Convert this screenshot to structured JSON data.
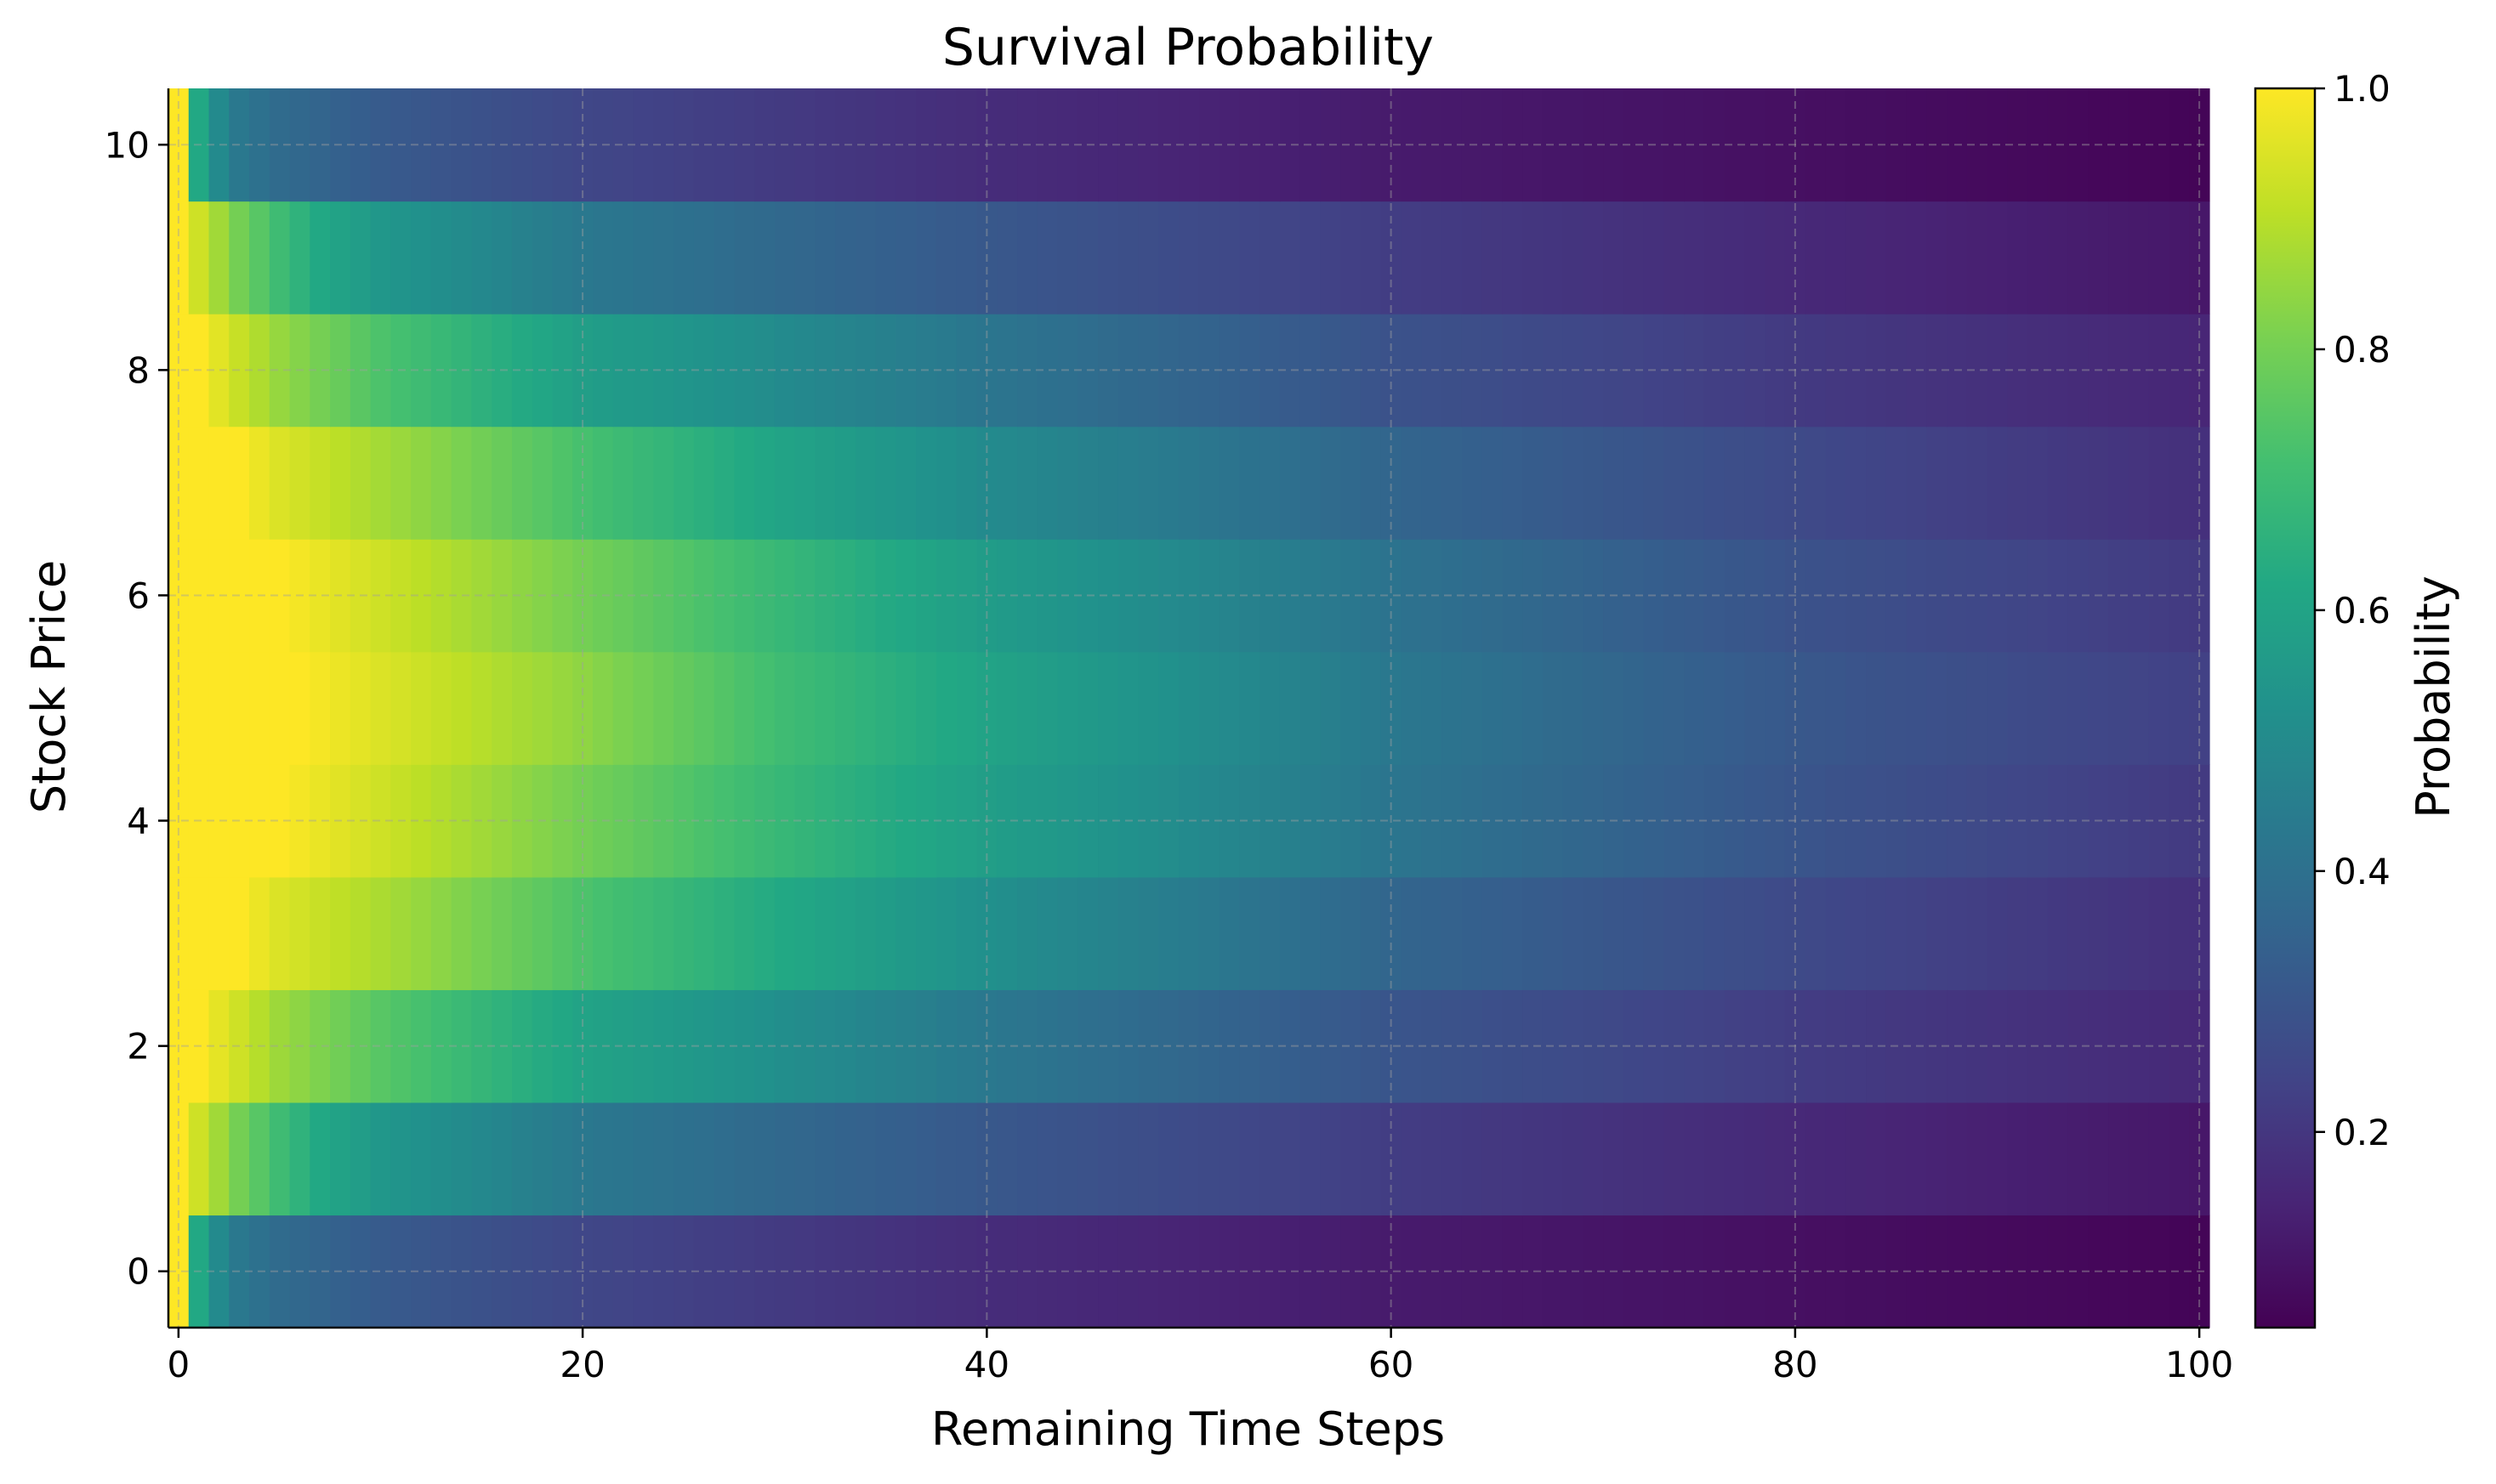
{
  "chart_data": {
    "type": "heatmap",
    "title": "Survival Probability",
    "xlabel": "Remaining Time Steps",
    "ylabel": "Stock Price",
    "colorbar_label": "Probability",
    "colormap": "viridis",
    "x_range": [
      0,
      100
    ],
    "xlim": [
      -0.5,
      100.5
    ],
    "y_range": [
      0,
      10
    ],
    "ylim": [
      -0.5,
      10.5
    ],
    "x_ticks": [
      0,
      20,
      40,
      60,
      80,
      100
    ],
    "x_tick_labels": [
      "0",
      "20",
      "40",
      "60",
      "80",
      "100"
    ],
    "y_ticks": [
      0,
      2,
      4,
      6,
      8,
      10
    ],
    "y_tick_labels": [
      "0",
      "2",
      "4",
      "6",
      "8",
      "10"
    ],
    "colorbar_range": [
      0.05,
      1.0
    ],
    "colorbar_ticks": [
      0.2,
      0.4,
      0.6,
      0.8,
      1.0
    ],
    "colorbar_tick_labels": [
      "0.2",
      "0.4",
      "0.6",
      "0.8",
      "1.0"
    ],
    "grid": true,
    "rows": [
      {
        "price": 0,
        "points": [
          [
            0,
            1.0
          ],
          [
            1,
            0.62
          ],
          [
            2,
            0.5
          ],
          [
            3,
            0.43
          ],
          [
            5,
            0.38
          ],
          [
            10,
            0.32
          ],
          [
            20,
            0.25
          ],
          [
            40,
            0.17
          ],
          [
            60,
            0.12
          ],
          [
            80,
            0.09
          ],
          [
            100,
            0.06
          ]
        ]
      },
      {
        "price": 1,
        "points": [
          [
            0,
            1.0
          ],
          [
            1,
            0.93
          ],
          [
            3,
            0.8
          ],
          [
            5,
            0.7
          ],
          [
            7,
            0.62
          ],
          [
            10,
            0.55
          ],
          [
            20,
            0.43
          ],
          [
            40,
            0.31
          ],
          [
            60,
            0.22
          ],
          [
            80,
            0.16
          ],
          [
            100,
            0.11
          ]
        ]
      },
      {
        "price": 2,
        "points": [
          [
            0,
            1.0
          ],
          [
            1,
            1.0
          ],
          [
            3,
            0.93
          ],
          [
            5,
            0.86
          ],
          [
            10,
            0.75
          ],
          [
            20,
            0.6
          ],
          [
            40,
            0.43
          ],
          [
            60,
            0.3
          ],
          [
            80,
            0.22
          ],
          [
            100,
            0.16
          ]
        ]
      },
      {
        "price": 3,
        "points": [
          [
            0,
            1.0
          ],
          [
            3,
            1.0
          ],
          [
            5,
            0.95
          ],
          [
            10,
            0.88
          ],
          [
            20,
            0.73
          ],
          [
            30,
            0.62
          ],
          [
            40,
            0.52
          ],
          [
            60,
            0.36
          ],
          [
            80,
            0.26
          ],
          [
            100,
            0.18
          ]
        ]
      },
      {
        "price": 4,
        "points": [
          [
            0,
            1.0
          ],
          [
            5,
            1.0
          ],
          [
            10,
            0.93
          ],
          [
            20,
            0.8
          ],
          [
            30,
            0.68
          ],
          [
            40,
            0.58
          ],
          [
            60,
            0.42
          ],
          [
            80,
            0.3
          ],
          [
            100,
            0.21
          ]
        ]
      },
      {
        "price": 5,
        "points": [
          [
            0,
            1.0
          ],
          [
            6,
            1.0
          ],
          [
            10,
            0.95
          ],
          [
            20,
            0.84
          ],
          [
            30,
            0.7
          ],
          [
            40,
            0.6
          ],
          [
            60,
            0.43
          ],
          [
            80,
            0.31
          ],
          [
            100,
            0.23
          ]
        ]
      },
      {
        "price": 6,
        "points": [
          [
            0,
            1.0
          ],
          [
            5,
            1.0
          ],
          [
            10,
            0.93
          ],
          [
            20,
            0.8
          ],
          [
            30,
            0.68
          ],
          [
            40,
            0.57
          ],
          [
            60,
            0.41
          ],
          [
            80,
            0.29
          ],
          [
            100,
            0.21
          ]
        ]
      },
      {
        "price": 7,
        "points": [
          [
            0,
            1.0
          ],
          [
            3,
            1.0
          ],
          [
            5,
            0.95
          ],
          [
            10,
            0.87
          ],
          [
            20,
            0.72
          ],
          [
            30,
            0.6
          ],
          [
            40,
            0.5
          ],
          [
            60,
            0.36
          ],
          [
            80,
            0.26
          ],
          [
            100,
            0.18
          ]
        ]
      },
      {
        "price": 8,
        "points": [
          [
            0,
            1.0
          ],
          [
            1,
            1.0
          ],
          [
            3,
            0.92
          ],
          [
            5,
            0.85
          ],
          [
            10,
            0.73
          ],
          [
            20,
            0.58
          ],
          [
            40,
            0.42
          ],
          [
            60,
            0.29
          ],
          [
            80,
            0.21
          ],
          [
            100,
            0.15
          ]
        ]
      },
      {
        "price": 9,
        "points": [
          [
            0,
            1.0
          ],
          [
            1,
            0.93
          ],
          [
            3,
            0.8
          ],
          [
            5,
            0.7
          ],
          [
            7,
            0.62
          ],
          [
            10,
            0.55
          ],
          [
            20,
            0.43
          ],
          [
            40,
            0.31
          ],
          [
            60,
            0.22
          ],
          [
            80,
            0.16
          ],
          [
            100,
            0.11
          ]
        ]
      },
      {
        "price": 10,
        "points": [
          [
            0,
            1.0
          ],
          [
            1,
            0.62
          ],
          [
            2,
            0.5
          ],
          [
            3,
            0.43
          ],
          [
            5,
            0.38
          ],
          [
            10,
            0.32
          ],
          [
            20,
            0.25
          ],
          [
            40,
            0.17
          ],
          [
            60,
            0.12
          ],
          [
            80,
            0.09
          ],
          [
            100,
            0.06
          ]
        ]
      }
    ]
  }
}
